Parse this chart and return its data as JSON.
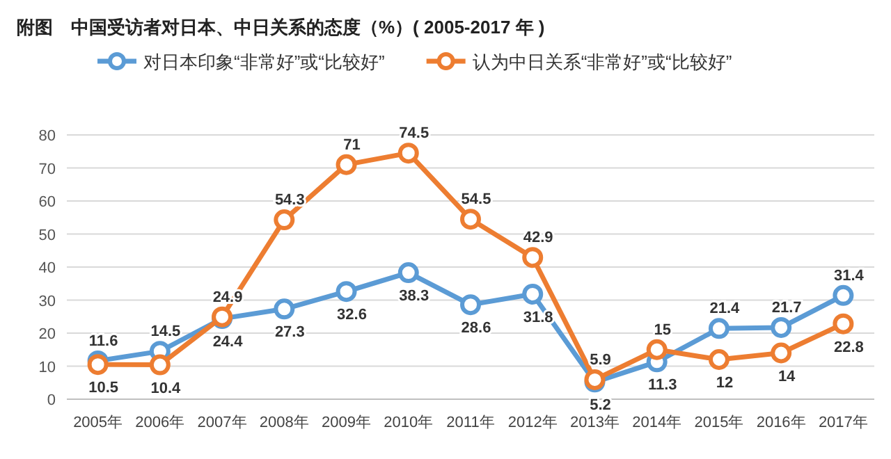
{
  "chart_data": {
    "type": "line",
    "title": "附图　中国受访者对日本、中日关系的态度（%）( 2005-2017 年 )",
    "categories": [
      "2005年",
      "2006年",
      "2007年",
      "2008年",
      "2009年",
      "2010年",
      "2011年",
      "2012年",
      "2013年",
      "2014年",
      "2015年",
      "2016年",
      "2017年"
    ],
    "series": [
      {
        "name": "对日本印象“非常好”或“比较好”",
        "color": "#5b9bd5",
        "values": [
          11.6,
          14.5,
          24.4,
          27.3,
          32.6,
          38.3,
          28.6,
          31.8,
          5.2,
          11.3,
          21.4,
          21.7,
          31.4
        ]
      },
      {
        "name": "认为中日关系“非常好”或“比较好”",
        "color": "#ed7d31",
        "values": [
          10.5,
          10.4,
          24.9,
          54.3,
          71,
          74.5,
          54.5,
          42.9,
          5.9,
          15,
          12,
          14,
          22.8
        ]
      }
    ],
    "ylim": [
      0,
      80
    ],
    "yticks": [
      0,
      10,
      20,
      30,
      40,
      50,
      60,
      70,
      80
    ],
    "grid": "y",
    "legend": "top",
    "marker": "circle",
    "line_style": "solid",
    "data_labels": true
  }
}
